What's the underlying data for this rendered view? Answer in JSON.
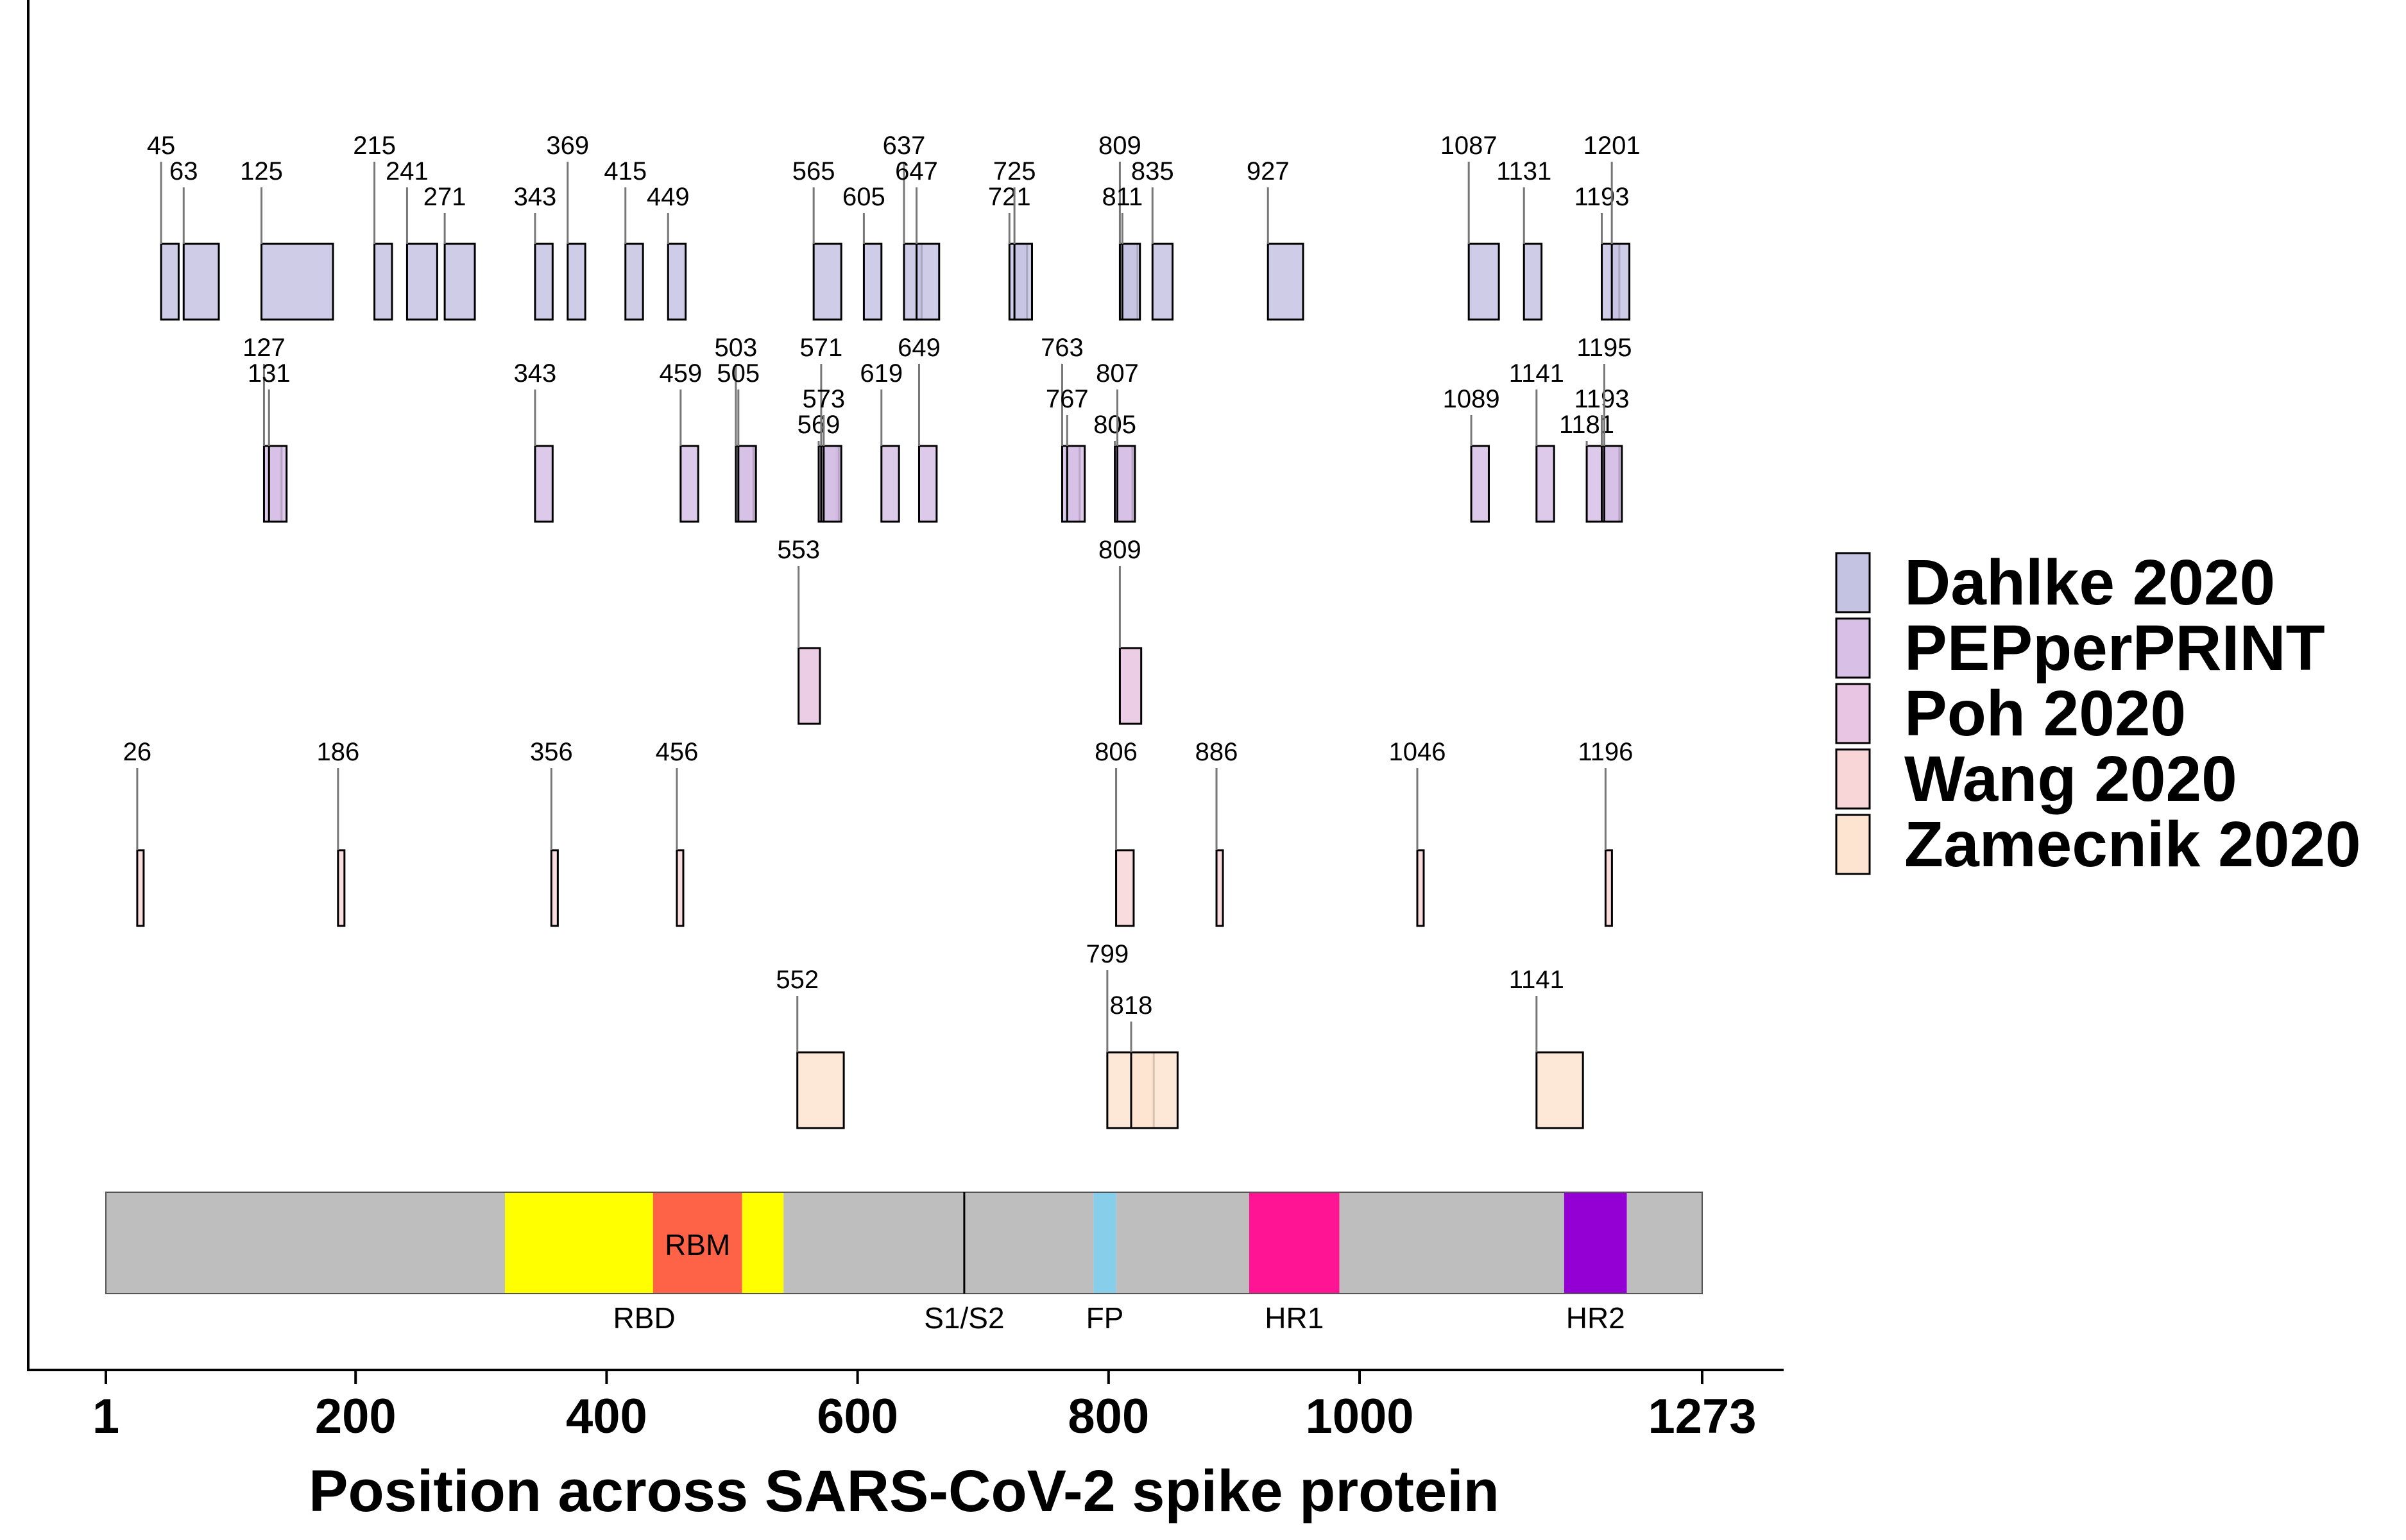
{
  "chart_data": {
    "type": "interval-track",
    "title": "",
    "xlabel": "Position across SARS-CoV-2 spike protein",
    "ylabel": "",
    "xlim": [
      1,
      1273
    ],
    "x_ticks": [
      1,
      200,
      400,
      600,
      800,
      1000,
      1273
    ],
    "x_tick_labels": [
      "1",
      "200",
      "400",
      "600",
      "800",
      "1000",
      "1273"
    ],
    "legend": {
      "position": "right",
      "entries": [
        {
          "label": "Dahlke 2020",
          "color": "#c5c3e2"
        },
        {
          "label": "PEPperPRINT",
          "color": "#d7bfe5"
        },
        {
          "label": "Poh 2020",
          "color": "#e8c5e2"
        },
        {
          "label": "Wang 2020",
          "color": "#f8d6d8"
        },
        {
          "label": "Zamecnik 2020",
          "color": "#fde4d0"
        }
      ]
    },
    "series": [
      {
        "name": "Dahlke 2020",
        "color": "#c5c3e2",
        "epitopes": [
          {
            "start": 45,
            "end": 59,
            "label": "45",
            "tier": 0
          },
          {
            "start": 63,
            "end": 91,
            "label": "63",
            "tier": 1
          },
          {
            "start": 125,
            "end": 182,
            "label": "125",
            "tier": 1
          },
          {
            "start": 215,
            "end": 229,
            "label": "215",
            "tier": 0
          },
          {
            "start": 241,
            "end": 265,
            "label": "241",
            "tier": 1
          },
          {
            "start": 271,
            "end": 295,
            "label": "271",
            "tier": 2
          },
          {
            "start": 343,
            "end": 357,
            "label": "343",
            "tier": 2
          },
          {
            "start": 369,
            "end": 383,
            "label": "369",
            "tier": 0
          },
          {
            "start": 415,
            "end": 429,
            "label": "415",
            "tier": 1
          },
          {
            "start": 449,
            "end": 463,
            "label": "449",
            "tier": 2
          },
          {
            "start": 565,
            "end": 587,
            "label": "565",
            "tier": 1
          },
          {
            "start": 605,
            "end": 619,
            "label": "605",
            "tier": 2
          },
          {
            "start": 637,
            "end": 651,
            "label": "637",
            "tier": 0
          },
          {
            "start": 647,
            "end": 665,
            "label": "647",
            "tier": 1
          },
          {
            "start": 721,
            "end": 735,
            "label": "721",
            "tier": 2
          },
          {
            "start": 725,
            "end": 739,
            "label": "725",
            "tier": 1
          },
          {
            "start": 809,
            "end": 823,
            "label": "809",
            "tier": 0
          },
          {
            "start": 811,
            "end": 825,
            "label": "811",
            "tier": 2
          },
          {
            "start": 835,
            "end": 851,
            "label": "835",
            "tier": 1
          },
          {
            "start": 927,
            "end": 955,
            "label": "927",
            "tier": 1
          },
          {
            "start": 1087,
            "end": 1111,
            "label": "1087",
            "tier": 0
          },
          {
            "start": 1131,
            "end": 1145,
            "label": "1131",
            "tier": 1
          },
          {
            "start": 1193,
            "end": 1207,
            "label": "1193",
            "tier": 2
          },
          {
            "start": 1201,
            "end": 1215,
            "label": "1201",
            "tier": 0
          }
        ]
      },
      {
        "name": "PEPperPRINT",
        "color": "#d7bfe5",
        "epitopes": [
          {
            "start": 127,
            "end": 141,
            "label": "127",
            "tier": 0
          },
          {
            "start": 131,
            "end": 145,
            "label": "131",
            "tier": 1
          },
          {
            "start": 343,
            "end": 357,
            "label": "343",
            "tier": 1
          },
          {
            "start": 459,
            "end": 473,
            "label": "459",
            "tier": 1
          },
          {
            "start": 503,
            "end": 517,
            "label": "503",
            "tier": 0
          },
          {
            "start": 505,
            "end": 519,
            "label": "505",
            "tier": 1
          },
          {
            "start": 569,
            "end": 583,
            "label": "569",
            "tier": 3
          },
          {
            "start": 571,
            "end": 585,
            "label": "571",
            "tier": 0
          },
          {
            "start": 573,
            "end": 587,
            "label": "573",
            "tier": 2
          },
          {
            "start": 619,
            "end": 633,
            "label": "619",
            "tier": 1
          },
          {
            "start": 649,
            "end": 663,
            "label": "649",
            "tier": 0
          },
          {
            "start": 763,
            "end": 777,
            "label": "763",
            "tier": 0
          },
          {
            "start": 767,
            "end": 781,
            "label": "767",
            "tier": 2
          },
          {
            "start": 805,
            "end": 819,
            "label": "805",
            "tier": 3
          },
          {
            "start": 807,
            "end": 821,
            "label": "807",
            "tier": 1
          },
          {
            "start": 1089,
            "end": 1103,
            "label": "1089",
            "tier": 2
          },
          {
            "start": 1141,
            "end": 1155,
            "label": "1141",
            "tier": 1
          },
          {
            "start": 1181,
            "end": 1195,
            "label": "1181",
            "tier": 3
          },
          {
            "start": 1193,
            "end": 1207,
            "label": "1193",
            "tier": 2
          },
          {
            "start": 1195,
            "end": 1209,
            "label": "1195",
            "tier": 0
          }
        ]
      },
      {
        "name": "Poh 2020",
        "color": "#e8c5e2",
        "epitopes": [
          {
            "start": 553,
            "end": 570,
            "label": "553",
            "tier": 0
          },
          {
            "start": 809,
            "end": 826,
            "label": "809",
            "tier": 0
          }
        ]
      },
      {
        "name": "Wang 2020",
        "color": "#f8d6d8",
        "epitopes": [
          {
            "start": 26,
            "end": 30,
            "label": "26",
            "tier": 0
          },
          {
            "start": 186,
            "end": 190,
            "label": "186",
            "tier": 0
          },
          {
            "start": 356,
            "end": 360,
            "label": "356",
            "tier": 0
          },
          {
            "start": 456,
            "end": 460,
            "label": "456",
            "tier": 0
          },
          {
            "start": 806,
            "end": 820,
            "label": "806",
            "tier": 0
          },
          {
            "start": 886,
            "end": 890,
            "label": "886",
            "tier": 0
          },
          {
            "start": 1046,
            "end": 1050,
            "label": "1046",
            "tier": 0
          },
          {
            "start": 1196,
            "end": 1200,
            "label": "1196",
            "tier": 0
          }
        ]
      },
      {
        "name": "Zamecnik 2020",
        "color": "#fde4d0",
        "epitopes": [
          {
            "start": 552,
            "end": 589,
            "label": "552",
            "tier": 1
          },
          {
            "start": 799,
            "end": 836,
            "label": "799",
            "tier": 0
          },
          {
            "start": 818,
            "end": 855,
            "label": "818",
            "tier": 2
          },
          {
            "start": 1141,
            "end": 1178,
            "label": "1141",
            "tier": 1
          }
        ]
      }
    ],
    "protein_domains": [
      {
        "start": 1,
        "end": 320,
        "label": "",
        "color": "#bebebe"
      },
      {
        "start": 319,
        "end": 437,
        "label": "",
        "color": "#ffff00"
      },
      {
        "start": 437,
        "end": 508,
        "label": "RBM",
        "color": "#ff6347",
        "label_inside": true
      },
      {
        "start": 508,
        "end": 541,
        "label": "",
        "color": "#ffff00"
      },
      {
        "start": 541,
        "end": 788,
        "label": "",
        "color": "#bebebe"
      },
      {
        "start": 788,
        "end": 806,
        "label": "",
        "color": "#87ceeb"
      },
      {
        "start": 806,
        "end": 912,
        "label": "",
        "color": "#bebebe"
      },
      {
        "start": 912,
        "end": 984,
        "label": "",
        "color": "#ff1493"
      },
      {
        "start": 984,
        "end": 1163,
        "label": "",
        "color": "#bebebe"
      },
      {
        "start": 1163,
        "end": 1213,
        "label": "",
        "color": "#9400d3"
      },
      {
        "start": 1213,
        "end": 1273,
        "label": "",
        "color": "#bebebe"
      }
    ],
    "domain_labels": [
      {
        "text": "RBD",
        "position": 430
      },
      {
        "text": "S1/S2",
        "position": 685
      },
      {
        "text": "FP",
        "position": 797
      },
      {
        "text": "HR1",
        "position": 948
      },
      {
        "text": "HR2",
        "position": 1188
      }
    ],
    "cleavage_sites": [
      685
    ]
  }
}
